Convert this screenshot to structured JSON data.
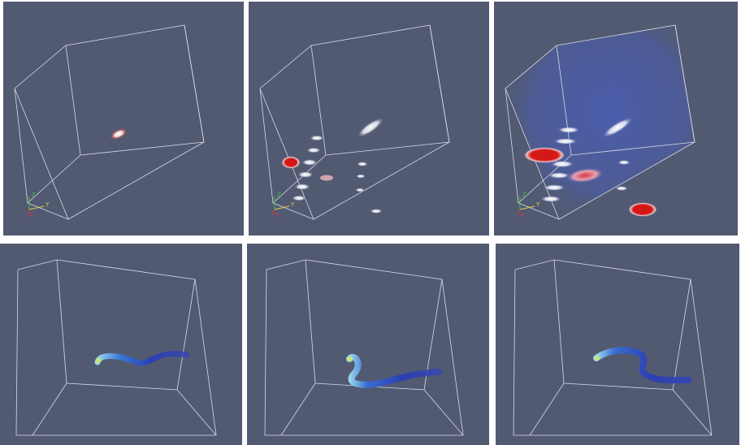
{
  "colors": {
    "background": "#525a72",
    "wireframe": "#d8dbe6",
    "axis_x": "#e03030",
    "axis_y": "#e0d040",
    "axis_z": "#40c040",
    "hot": "#d41818",
    "tube": "#2c3fb0"
  },
  "orientation_axes": {
    "x_label": "X",
    "y_label": "Y",
    "z_label": "Z"
  },
  "panels": [
    {
      "name": "top-left",
      "type": "volume-render"
    },
    {
      "name": "top-center",
      "type": "volume-render"
    },
    {
      "name": "top-right",
      "type": "volume-render"
    },
    {
      "name": "bottom-left",
      "type": "tube-render"
    },
    {
      "name": "bottom-center",
      "type": "tube-render"
    },
    {
      "name": "bottom-right",
      "type": "tube-render"
    }
  ]
}
